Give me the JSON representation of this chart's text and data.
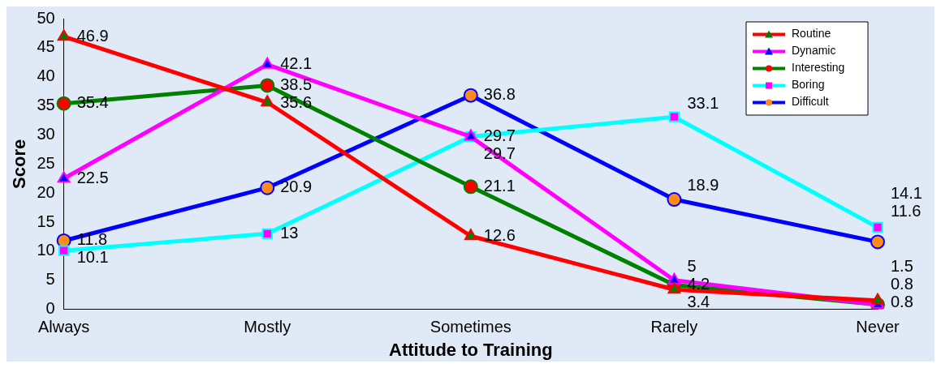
{
  "chart_data": {
    "type": "line",
    "xlabel": "Attitude to Training",
    "ylabel": "Score",
    "categories": [
      "Always",
      "Mostly",
      "Sometimes",
      "Rarely",
      "Never"
    ],
    "ylim": [
      0,
      50
    ],
    "yticks": [
      0,
      5,
      10,
      15,
      20,
      25,
      30,
      35,
      40,
      45,
      50
    ],
    "grid": false,
    "legend": "top right",
    "data_labels": true,
    "series": [
      {
        "name": "Routine",
        "color": "#ff0000",
        "marker": "triangle",
        "colors": [
          "#008000",
          "#008000",
          "#008000",
          "#008000",
          "#008000"
        ],
        "values": [
          46.9,
          35.6,
          12.6,
          3.4,
          1.5
        ]
      },
      {
        "name": "Dynamic",
        "color": "#ff00ff",
        "marker": "triangle",
        "colors": [
          "#0000ff",
          "#0000ff",
          "#0000ff",
          "#0000ff",
          "#0000ff"
        ],
        "values": [
          22.5,
          42.1,
          29.7,
          5,
          0.8
        ]
      },
      {
        "name": "Interesting",
        "color": "#008000",
        "marker": "circle",
        "colors": [
          "#ff0000",
          "#ff0000",
          "#ff0000",
          "#ff0000",
          "#ff0000"
        ],
        "values": [
          35.4,
          38.5,
          21.1,
          4.2,
          0.8
        ]
      },
      {
        "name": "Boring",
        "color": "#00ffff",
        "marker": "square",
        "colors": [
          "#ff00ff",
          "#ff00ff",
          "#ff00ff",
          "#ff00ff",
          "#ff00ff"
        ],
        "values": [
          10.1,
          13,
          29.7,
          33.1,
          14.1
        ]
      },
      {
        "name": "Difficult",
        "color": "#0000ff",
        "marker": "circle",
        "colors": [
          "#ff8c1a",
          "#ff8c1a",
          "#ff8c1a",
          "#ff8c1a",
          "#ff8c1a"
        ],
        "values": [
          11.8,
          20.9,
          36.8,
          18.9,
          11.6
        ]
      }
    ]
  }
}
